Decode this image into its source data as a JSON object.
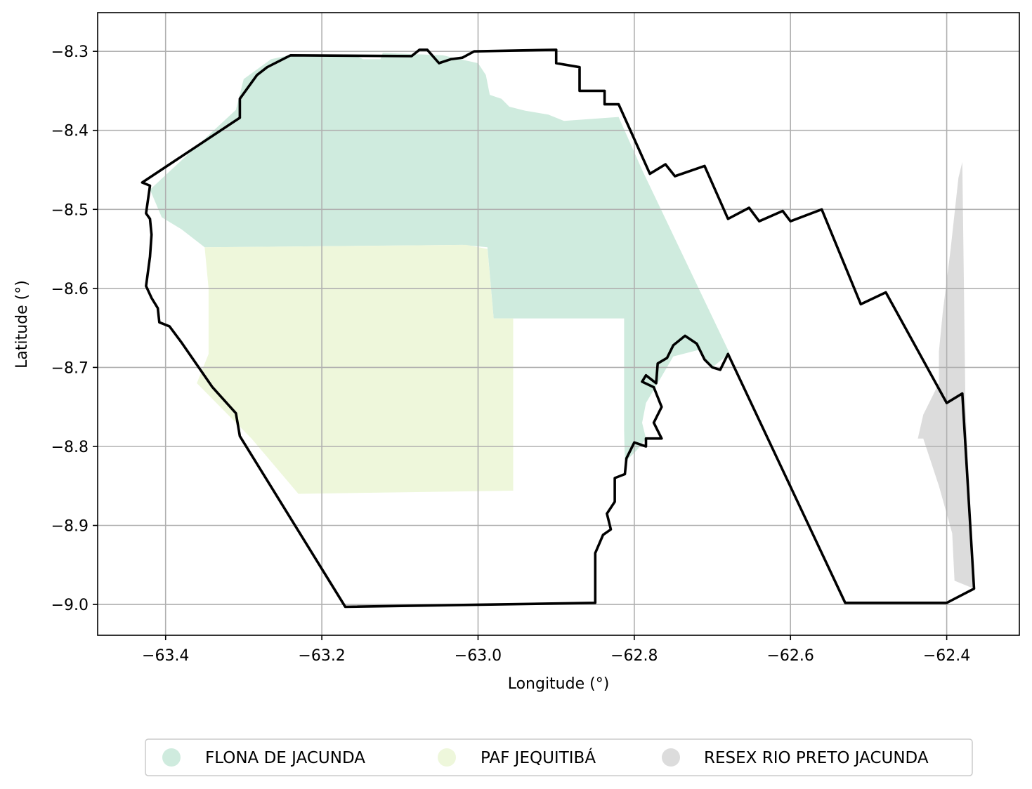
{
  "chart_data": {
    "type": "map",
    "xlabel": "Longitude (°)",
    "ylabel": "Latitude (°)",
    "xlim": [
      -63.487,
      -62.307
    ],
    "ylim": [
      -9.039,
      -8.251
    ],
    "x_ticks": [
      {
        "value": -63.4,
        "label": "−63.4"
      },
      {
        "value": -63.2,
        "label": "−63.2"
      },
      {
        "value": -63.0,
        "label": "−63.0"
      },
      {
        "value": -62.8,
        "label": "−62.8"
      },
      {
        "value": -62.6,
        "label": "−62.6"
      },
      {
        "value": -62.4,
        "label": "−62.4"
      }
    ],
    "y_ticks": [
      {
        "value": -8.3,
        "label": "−8.3"
      },
      {
        "value": -8.4,
        "label": "−8.4"
      },
      {
        "value": -8.5,
        "label": "−8.5"
      },
      {
        "value": -8.6,
        "label": "−8.6"
      },
      {
        "value": -8.7,
        "label": "−8.7"
      },
      {
        "value": -8.8,
        "label": "−8.8"
      },
      {
        "value": -8.9,
        "label": "−8.9"
      },
      {
        "value": -9.0,
        "label": "−9.0"
      }
    ],
    "grid": true,
    "legend_position": "bottom",
    "areas": [
      {
        "name": "FLONA DE JACUNDA",
        "color": "#cfebde",
        "coords": [
          [
            -63.42,
            -8.475
          ],
          [
            -63.31,
            -8.374
          ],
          [
            -63.3,
            -8.335
          ],
          [
            -63.265,
            -8.31
          ],
          [
            -63.238,
            -8.304
          ],
          [
            -63.16,
            -8.304
          ],
          [
            -63.147,
            -8.31
          ],
          [
            -63.125,
            -8.31
          ],
          [
            -63.122,
            -8.302
          ],
          [
            -63.045,
            -8.305
          ],
          [
            -63.0,
            -8.315
          ],
          [
            -62.99,
            -8.33
          ],
          [
            -62.985,
            -8.355
          ],
          [
            -62.97,
            -8.36
          ],
          [
            -62.96,
            -8.37
          ],
          [
            -62.94,
            -8.375
          ],
          [
            -62.91,
            -8.38
          ],
          [
            -62.89,
            -8.388
          ],
          [
            -62.82,
            -8.383
          ],
          [
            -62.79,
            -8.45
          ],
          [
            -62.678,
            -8.682
          ],
          [
            -62.7,
            -8.7
          ],
          [
            -62.718,
            -8.678
          ],
          [
            -62.75,
            -8.686
          ],
          [
            -62.77,
            -8.72
          ],
          [
            -62.785,
            -8.745
          ],
          [
            -62.79,
            -8.77
          ],
          [
            -62.785,
            -8.79
          ],
          [
            -62.797,
            -8.805
          ],
          [
            -62.812,
            -8.82
          ],
          [
            -62.813,
            -8.78
          ],
          [
            -62.813,
            -8.638
          ],
          [
            -62.98,
            -8.638
          ],
          [
            -62.988,
            -8.548
          ],
          [
            -63.02,
            -8.545
          ],
          [
            -63.35,
            -8.548
          ],
          [
            -63.38,
            -8.525
          ],
          [
            -63.405,
            -8.51
          ]
        ]
      },
      {
        "name": "PAF JEQUITIBÁ",
        "color": "#eef7db",
        "coords": [
          [
            -63.35,
            -8.548
          ],
          [
            -63.015,
            -8.545
          ],
          [
            -62.988,
            -8.55
          ],
          [
            -62.98,
            -8.638
          ],
          [
            -62.955,
            -8.638
          ],
          [
            -62.955,
            -8.856
          ],
          [
            -63.23,
            -8.86
          ],
          [
            -63.29,
            -8.79
          ],
          [
            -63.36,
            -8.72
          ],
          [
            -63.345,
            -8.683
          ],
          [
            -63.345,
            -8.6
          ]
        ]
      },
      {
        "name": "RESEX RIO PRETO JACUNDA",
        "color": "#dcdcdc",
        "coords": [
          [
            -62.376,
            -8.75
          ],
          [
            -62.365,
            -8.98
          ],
          [
            -62.39,
            -8.97
          ],
          [
            -62.393,
            -8.91
          ],
          [
            -62.41,
            -8.85
          ],
          [
            -62.43,
            -8.79
          ],
          [
            -62.437,
            -8.79
          ],
          [
            -62.43,
            -8.76
          ],
          [
            -62.41,
            -8.72
          ],
          [
            -62.41,
            -8.68
          ],
          [
            -62.405,
            -8.63
          ],
          [
            -62.395,
            -8.55
          ],
          [
            -62.385,
            -8.46
          ],
          [
            -62.38,
            -8.44
          ]
        ]
      }
    ],
    "boundary": {
      "color": "#000000",
      "coords": [
        [
          -63.43,
          -8.466
        ],
        [
          -63.305,
          -8.384
        ],
        [
          -63.305,
          -8.36
        ],
        [
          -63.283,
          -8.33
        ],
        [
          -63.27,
          -8.32
        ],
        [
          -63.24,
          -8.305
        ],
        [
          -63.085,
          -8.306
        ],
        [
          -63.075,
          -8.298
        ],
        [
          -63.065,
          -8.298
        ],
        [
          -63.05,
          -8.315
        ],
        [
          -63.035,
          -8.31
        ],
        [
          -63.02,
          -8.308
        ],
        [
          -63.005,
          -8.3
        ],
        [
          -62.9,
          -8.298
        ],
        [
          -62.9,
          -8.315
        ],
        [
          -62.87,
          -8.32
        ],
        [
          -62.87,
          -8.35
        ],
        [
          -62.838,
          -8.35
        ],
        [
          -62.838,
          -8.367
        ],
        [
          -62.82,
          -8.367
        ],
        [
          -62.78,
          -8.455
        ],
        [
          -62.76,
          -8.443
        ],
        [
          -62.748,
          -8.458
        ],
        [
          -62.71,
          -8.445
        ],
        [
          -62.68,
          -8.512
        ],
        [
          -62.653,
          -8.498
        ],
        [
          -62.64,
          -8.515
        ],
        [
          -62.61,
          -8.502
        ],
        [
          -62.6,
          -8.515
        ],
        [
          -62.56,
          -8.5
        ],
        [
          -62.51,
          -8.62
        ],
        [
          -62.478,
          -8.605
        ],
        [
          -62.4,
          -8.745
        ],
        [
          -62.38,
          -8.733
        ],
        [
          -62.365,
          -8.98
        ],
        [
          -62.4,
          -8.998
        ],
        [
          -62.53,
          -8.998
        ],
        [
          -62.68,
          -8.683
        ],
        [
          -62.69,
          -8.703
        ],
        [
          -62.7,
          -8.7
        ],
        [
          -62.71,
          -8.69
        ],
        [
          -62.72,
          -8.67
        ],
        [
          -62.735,
          -8.66
        ],
        [
          -62.75,
          -8.672
        ],
        [
          -62.758,
          -8.688
        ],
        [
          -62.77,
          -8.695
        ],
        [
          -62.772,
          -8.72
        ],
        [
          -62.785,
          -8.71
        ],
        [
          -62.79,
          -8.718
        ],
        [
          -62.775,
          -8.725
        ],
        [
          -62.765,
          -8.75
        ],
        [
          -62.775,
          -8.77
        ],
        [
          -62.765,
          -8.79
        ],
        [
          -62.785,
          -8.79
        ],
        [
          -62.785,
          -8.8
        ],
        [
          -62.8,
          -8.795
        ],
        [
          -62.81,
          -8.815
        ],
        [
          -62.812,
          -8.835
        ],
        [
          -62.825,
          -8.84
        ],
        [
          -62.825,
          -8.87
        ],
        [
          -62.835,
          -8.885
        ],
        [
          -62.83,
          -8.905
        ],
        [
          -62.84,
          -8.912
        ],
        [
          -62.85,
          -8.935
        ],
        [
          -62.85,
          -8.998
        ],
        [
          -63.17,
          -9.003
        ],
        [
          -63.305,
          -8.787
        ],
        [
          -63.31,
          -8.758
        ],
        [
          -63.34,
          -8.725
        ],
        [
          -63.38,
          -8.668
        ],
        [
          -63.395,
          -8.648
        ],
        [
          -63.408,
          -8.643
        ],
        [
          -63.41,
          -8.625
        ],
        [
          -63.418,
          -8.612
        ],
        [
          -63.425,
          -8.597
        ],
        [
          -63.42,
          -8.56
        ],
        [
          -63.418,
          -8.532
        ],
        [
          -63.42,
          -8.512
        ],
        [
          -63.425,
          -8.505
        ],
        [
          -63.42,
          -8.47
        ]
      ]
    }
  }
}
